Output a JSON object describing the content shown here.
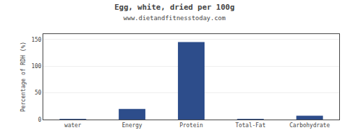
{
  "chart_data": {
    "type": "bar",
    "title": "Egg, white, dried per 100g",
    "subtitle": "www.dietandfitnesstoday.com",
    "categories": [
      "water",
      "Energy",
      "Protein",
      "Total-Fat",
      "Carbohydrate"
    ],
    "values": [
      0.5,
      20,
      145,
      0.5,
      7
    ],
    "color": "#2d4d8b",
    "ylabel": "Percentage of RDH (%)",
    "ylim": [
      0,
      160
    ],
    "yticks": [
      0,
      50,
      100,
      150
    ],
    "grid": true
  }
}
